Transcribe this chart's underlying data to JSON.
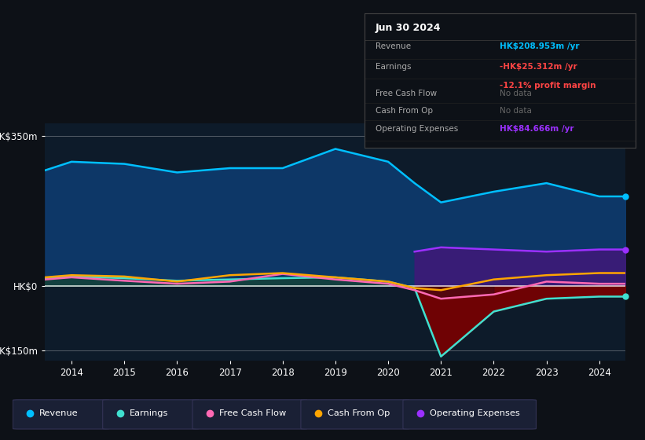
{
  "bg_color": "#0d1117",
  "plot_bg": "#0d1b2a",
  "years": [
    2013.5,
    2014,
    2015,
    2016,
    2017,
    2018,
    2019,
    2020,
    2020.5,
    2021,
    2022,
    2023,
    2024,
    2024.5
  ],
  "revenue": [
    270,
    290,
    285,
    265,
    275,
    275,
    320,
    290,
    240,
    195,
    220,
    240,
    209,
    209
  ],
  "earnings": [
    18,
    22,
    18,
    12,
    15,
    18,
    20,
    10,
    -5,
    -165,
    -60,
    -30,
    -25,
    -25
  ],
  "free_cash_flow": [
    15,
    20,
    12,
    5,
    10,
    28,
    15,
    5,
    -10,
    -30,
    -20,
    10,
    5,
    5
  ],
  "cash_from_op": [
    20,
    25,
    22,
    10,
    25,
    30,
    20,
    10,
    -5,
    -10,
    15,
    25,
    30,
    30
  ],
  "op_expenses": [
    0,
    0,
    0,
    0,
    0,
    0,
    0,
    0,
    80,
    90,
    85,
    80,
    85,
    85
  ],
  "ylim": [
    -175,
    380
  ],
  "yticks": [
    -150,
    0,
    350
  ],
  "ytick_labels": [
    "-HK$150m",
    "HK$0",
    "HK$350m"
  ],
  "xticks": [
    2014,
    2015,
    2016,
    2017,
    2018,
    2019,
    2020,
    2021,
    2022,
    2023,
    2024
  ],
  "revenue_color": "#00bfff",
  "earnings_line_color": "#40e0d0",
  "free_cash_color": "#ff69b4",
  "cash_op_color": "#ffa500",
  "op_exp_color": "#9b30ff",
  "earnings_fill_color": "#7b0000",
  "revenue_fill_color": "#0d3b6e",
  "op_exp_fill_color": "#3d1a78",
  "legend_items": [
    "Revenue",
    "Earnings",
    "Free Cash Flow",
    "Cash From Op",
    "Operating Expenses"
  ],
  "legend_colors": [
    "#00bfff",
    "#40e0d0",
    "#ff69b4",
    "#ffa500",
    "#9b30ff"
  ],
  "info_box": {
    "date": "Jun 30 2024",
    "revenue_val": "HK$208.953m",
    "revenue_color": "#00bfff",
    "earnings_val": "-HK$25.312m",
    "earnings_color": "#ff4444",
    "margin_val": "-12.1%",
    "margin_color": "#ff4444",
    "op_exp_val": "HK$84.666m",
    "op_exp_color": "#9b30ff"
  }
}
